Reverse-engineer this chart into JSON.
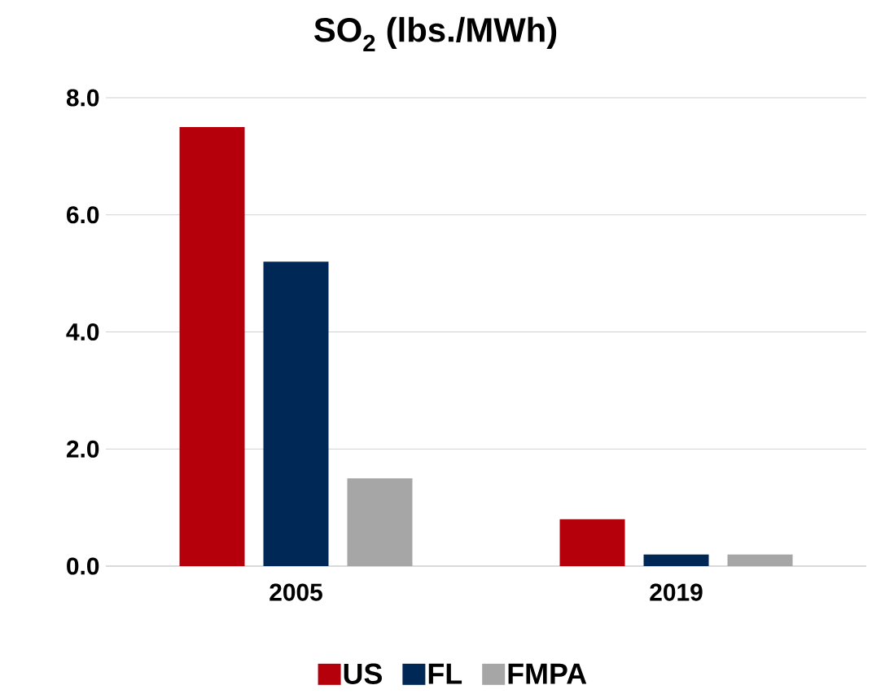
{
  "chart_data": {
    "type": "bar",
    "title": "SO$_{2}$ (lbs./MWh)",
    "categories": [
      "2005",
      "2019"
    ],
    "series": [
      {
        "name": "US",
        "color": "#b5000c",
        "values": [
          7.5,
          0.8
        ]
      },
      {
        "name": "FL",
        "color": "#002856",
        "values": [
          5.2,
          0.2
        ]
      },
      {
        "name": "FMPA",
        "color": "#a6a6a6",
        "values": [
          1.5,
          0.2
        ]
      }
    ],
    "ylim": [
      0,
      8
    ],
    "yticks": [
      {
        "value": 0,
        "label": "0.0"
      },
      {
        "value": 2,
        "label": "2.0"
      },
      {
        "value": 4,
        "label": "4.0"
      },
      {
        "value": 6,
        "label": "6.0"
      },
      {
        "value": 8,
        "label": "8.0"
      }
    ],
    "grid": "y",
    "legend": "bottom"
  }
}
